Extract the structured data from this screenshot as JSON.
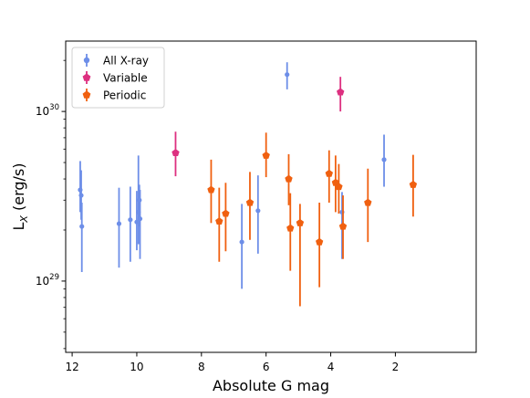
{
  "chart_data": {
    "type": "scatter",
    "xlabel": "Absolute G mag",
    "ylabel": "L_X (erg/s)",
    "x_inverted": true,
    "xlim": [
      12.2,
      -0.5
    ],
    "y_scale": "log",
    "ylim": [
      3.8e+28,
      2.6e+30
    ],
    "x_ticks": [
      12,
      10,
      8,
      6,
      4,
      2
    ],
    "y_ticks": [
      {
        "value": 1e+29,
        "mantissa": "10",
        "exponent": "29"
      },
      {
        "value": 1e+30,
        "mantissa": "10",
        "exponent": "30"
      }
    ],
    "legend_position": "upper left",
    "series": [
      {
        "name": "All X-ray",
        "color": "#6d8ee8",
        "marker": "circle",
        "points": [
          {
            "x": 11.75,
            "y": 3.45e+29,
            "ylo": 2.55e+29,
            "yhi": 5.1e+29
          },
          {
            "x": 11.72,
            "y": 3.2e+29,
            "ylo": 2.3e+29,
            "yhi": 4.5e+29
          },
          {
            "x": 11.7,
            "y": 2.1e+29,
            "ylo": 1.13e+29,
            "yhi": 2.9e+29
          },
          {
            "x": 10.55,
            "y": 2.18e+29,
            "ylo": 1.2e+29,
            "yhi": 3.55e+29
          },
          {
            "x": 10.2,
            "y": 2.3e+29,
            "ylo": 1.3e+29,
            "yhi": 3.6e+29
          },
          {
            "x": 10.0,
            "y": 2.23e+29,
            "ylo": 1.52e+29,
            "yhi": 3.4e+29
          },
          {
            "x": 9.95,
            "y": 2.55e+29,
            "ylo": 1.65e+29,
            "yhi": 5.5e+29
          },
          {
            "x": 9.92,
            "y": 3e+29,
            "ylo": 2.1e+29,
            "yhi": 3.7e+29
          },
          {
            "x": 9.9,
            "y": 2.33e+29,
            "ylo": 1.35e+29,
            "yhi": 3.45e+29
          },
          {
            "x": 6.75,
            "y": 1.7e+29,
            "ylo": 9e+28,
            "yhi": 2.85e+29
          },
          {
            "x": 6.25,
            "y": 2.6e+29,
            "ylo": 1.45e+29,
            "yhi": 4.2e+29
          },
          {
            "x": 5.35,
            "y": 1.65e+30,
            "ylo": 1.35e+30,
            "yhi": 1.95e+30
          },
          {
            "x": 3.65,
            "y": 2.55e+29,
            "ylo": 1.35e+29,
            "yhi": 3.35e+29
          },
          {
            "x": 2.35,
            "y": 5.2e+29,
            "ylo": 3.6e+29,
            "yhi": 7.3e+29
          }
        ]
      },
      {
        "name": "Variable",
        "color": "#dd3080",
        "marker": "pentagon",
        "points": [
          {
            "x": 8.8,
            "y": 5.7e+29,
            "ylo": 4.15e+29,
            "yhi": 7.6e+29
          },
          {
            "x": 3.7,
            "y": 1.3e+30,
            "ylo": 1e+30,
            "yhi": 1.6e+30
          }
        ]
      },
      {
        "name": "Periodic",
        "color": "#f06010",
        "marker": "pentagon",
        "points": [
          {
            "x": 7.7,
            "y": 3.45e+29,
            "ylo": 2.2e+29,
            "yhi": 5.2e+29
          },
          {
            "x": 7.45,
            "y": 2.25e+29,
            "ylo": 1.3e+29,
            "yhi": 3.55e+29
          },
          {
            "x": 7.25,
            "y": 2.5e+29,
            "ylo": 1.5e+29,
            "yhi": 3.8e+29
          },
          {
            "x": 6.5,
            "y": 2.9e+29,
            "ylo": 1.75e+29,
            "yhi": 4.4e+29
          },
          {
            "x": 6.0,
            "y": 5.5e+29,
            "ylo": 4.1e+29,
            "yhi": 7.5e+29
          },
          {
            "x": 5.3,
            "y": 4e+29,
            "ylo": 2.8e+29,
            "yhi": 5.6e+29
          },
          {
            "x": 5.25,
            "y": 2.05e+29,
            "ylo": 1.15e+29,
            "yhi": 3.3e+29
          },
          {
            "x": 4.95,
            "y": 2.2e+29,
            "ylo": 7.1e+28,
            "yhi": 2.85e+29
          },
          {
            "x": 4.35,
            "y": 1.7e+29,
            "ylo": 9.2e+28,
            "yhi": 2.9e+29
          },
          {
            "x": 4.05,
            "y": 4.3e+29,
            "ylo": 2.9e+29,
            "yhi": 5.9e+29
          },
          {
            "x": 3.85,
            "y": 3.8e+29,
            "ylo": 2.55e+29,
            "yhi": 5.5e+29
          },
          {
            "x": 3.75,
            "y": 3.6e+29,
            "ylo": 2.5e+29,
            "yhi": 4.9e+29
          },
          {
            "x": 3.62,
            "y": 2.1e+29,
            "ylo": 1.35e+29,
            "yhi": 3.2e+29
          },
          {
            "x": 2.85,
            "y": 2.9e+29,
            "ylo": 1.7e+29,
            "yhi": 4.6e+29
          },
          {
            "x": 1.45,
            "y": 3.7e+29,
            "ylo": 2.4e+29,
            "yhi": 5.55e+29
          }
        ]
      }
    ]
  }
}
